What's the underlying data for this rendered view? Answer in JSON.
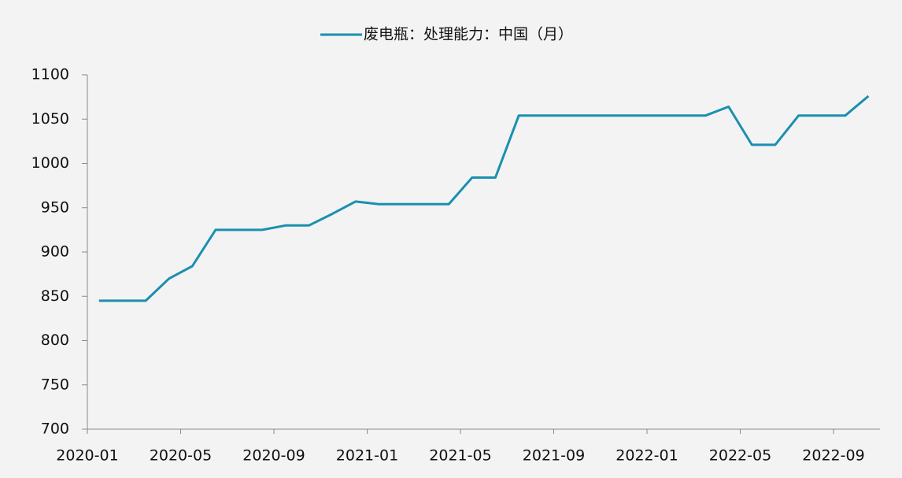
{
  "chart_data": {
    "type": "line",
    "x": [
      "2020-01",
      "2020-02",
      "2020-03",
      "2020-04",
      "2020-05",
      "2020-06",
      "2020-07",
      "2020-08",
      "2020-09",
      "2020-10",
      "2020-11",
      "2020-12",
      "2021-01",
      "2021-02",
      "2021-03",
      "2021-04",
      "2021-05",
      "2021-06",
      "2021-07",
      "2021-08",
      "2021-09",
      "2021-10",
      "2021-11",
      "2021-12",
      "2022-01",
      "2022-02",
      "2022-03",
      "2022-04",
      "2022-05",
      "2022-06",
      "2022-07",
      "2022-08",
      "2022-09",
      "2022-10"
    ],
    "series": [
      {
        "name": "废电瓶：处理能力：中国（月）",
        "color": "#1b8fb0",
        "values": [
          845,
          845,
          845,
          870,
          884,
          925,
          925,
          925,
          930,
          930,
          943,
          957,
          954,
          954,
          954,
          954,
          984,
          984,
          1054,
          1054,
          1054,
          1054,
          1054,
          1054,
          1054,
          1054,
          1054,
          1064,
          1021,
          1021,
          1054,
          1054,
          1054,
          1076
        ]
      }
    ],
    "ylim": [
      700,
      1100
    ],
    "yticks": [
      700,
      750,
      800,
      850,
      900,
      950,
      1000,
      1050,
      1100
    ],
    "xticks": [
      "2020-01",
      "2020-05",
      "2020-09",
      "2021-01",
      "2021-05",
      "2021-09",
      "2022-01",
      "2022-05",
      "2022-09"
    ],
    "legend": "top"
  }
}
